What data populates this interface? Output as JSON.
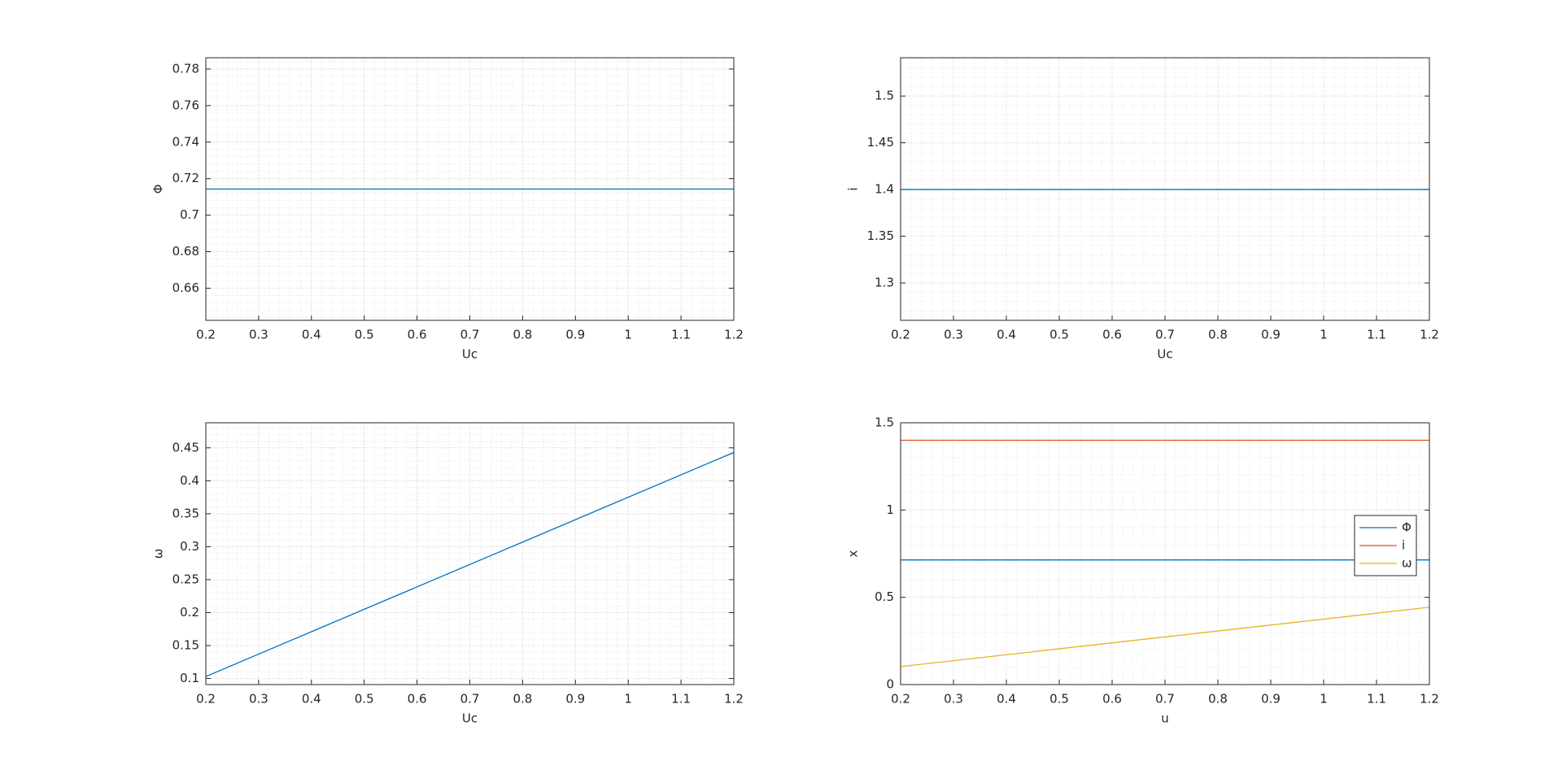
{
  "chart_data": [
    {
      "type": "line",
      "xlabel": "Uc",
      "ylabel": "Φ",
      "x": [
        0.2,
        1.2
      ],
      "series": [
        {
          "color": "#0072bd",
          "values": [
            0.7143,
            0.7143
          ]
        }
      ],
      "xlim": [
        0.2,
        1.2
      ],
      "ylim": [
        0.6424,
        0.7862
      ],
      "xticks": [
        0.2,
        0.3,
        0.4,
        0.5,
        0.6,
        0.7,
        0.8,
        0.9,
        1,
        1.1,
        1.2
      ],
      "yticks": [
        0.66,
        0.68,
        0.7,
        0.72,
        0.74,
        0.76,
        0.78
      ],
      "grid": true
    },
    {
      "type": "line",
      "xlabel": "Uc",
      "ylabel": "i",
      "x": [
        0.2,
        1.2
      ],
      "series": [
        {
          "color": "#0072bd",
          "values": [
            1.4,
            1.4
          ]
        }
      ],
      "xlim": [
        0.2,
        1.2
      ],
      "ylim": [
        1.26,
        1.541
      ],
      "xticks": [
        0.2,
        0.3,
        0.4,
        0.5,
        0.6,
        0.7,
        0.8,
        0.9,
        1,
        1.1,
        1.2
      ],
      "yticks": [
        1.3,
        1.35,
        1.4,
        1.45,
        1.5
      ],
      "grid": true
    },
    {
      "type": "line",
      "xlabel": "Uc",
      "ylabel": "ω",
      "x": [
        0.2,
        1.2
      ],
      "series": [
        {
          "color": "#0072bd",
          "values": [
            0.103,
            0.443
          ]
        }
      ],
      "xlim": [
        0.2,
        1.2
      ],
      "ylim": [
        0.0908,
        0.488
      ],
      "xticks": [
        0.2,
        0.3,
        0.4,
        0.5,
        0.6,
        0.7,
        0.8,
        0.9,
        1,
        1.1,
        1.2
      ],
      "yticks": [
        0.1,
        0.15,
        0.2,
        0.25,
        0.3,
        0.35,
        0.4,
        0.45
      ],
      "grid": true
    },
    {
      "type": "line",
      "xlabel": "u",
      "ylabel": "x",
      "x": [
        0.2,
        1.2
      ],
      "series": [
        {
          "name": "Φ",
          "color": "#0072bd",
          "values": [
            0.7143,
            0.7143
          ]
        },
        {
          "name": "i",
          "color": "#d95319",
          "values": [
            1.4,
            1.4
          ]
        },
        {
          "name": "ω",
          "color": "#edb120",
          "values": [
            0.103,
            0.443
          ]
        }
      ],
      "xlim": [
        0.2,
        1.2
      ],
      "ylim": [
        0,
        1.5
      ],
      "xticks": [
        0.2,
        0.3,
        0.4,
        0.5,
        0.6,
        0.7,
        0.8,
        0.9,
        1,
        1.1,
        1.2
      ],
      "yticks": [
        0,
        0.5,
        1,
        1.5
      ],
      "grid": true,
      "legend": "east"
    }
  ]
}
